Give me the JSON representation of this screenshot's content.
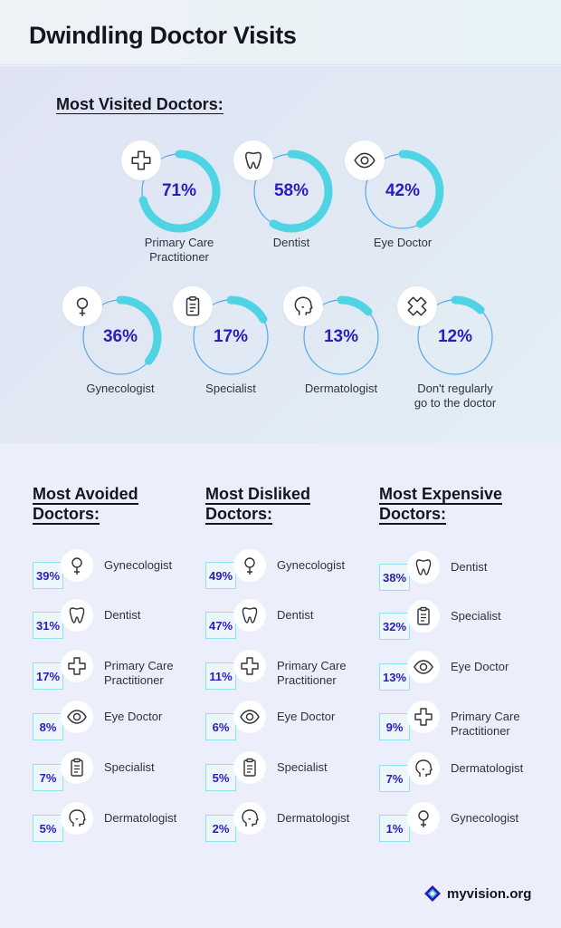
{
  "title": "Dwindling Doctor Visits",
  "visited": {
    "title": "Most Visited Doctors:",
    "items": [
      {
        "label": "Primary Care\nPractitioner",
        "value": 71,
        "pct": "71%",
        "icon": "cross-icon"
      },
      {
        "label": "Dentist",
        "value": 58,
        "pct": "58%",
        "icon": "tooth-icon"
      },
      {
        "label": "Eye Doctor",
        "value": 42,
        "pct": "42%",
        "icon": "eye-icon"
      },
      {
        "label": "Gynecologist",
        "value": 36,
        "pct": "36%",
        "icon": "female-icon"
      },
      {
        "label": "Specialist",
        "value": 17,
        "pct": "17%",
        "icon": "clipboard-icon"
      },
      {
        "label": "Dermatologist",
        "value": 13,
        "pct": "13%",
        "icon": "head-icon"
      },
      {
        "label": "Don't regularly\ngo to the doctor",
        "value": 12,
        "pct": "12%",
        "icon": "x-icon"
      }
    ]
  },
  "columns": [
    {
      "title": "Most Avoided\nDoctors:",
      "items": [
        {
          "label": "Gynecologist",
          "pct": "39%",
          "icon": "female-icon"
        },
        {
          "label": "Dentist",
          "pct": "31%",
          "icon": "tooth-icon"
        },
        {
          "label": "Primary Care\nPractitioner",
          "pct": "17%",
          "icon": "cross-icon"
        },
        {
          "label": "Eye Doctor",
          "pct": "8%",
          "icon": "eye-icon"
        },
        {
          "label": "Specialist",
          "pct": "7%",
          "icon": "clipboard-icon"
        },
        {
          "label": "Dermatologist",
          "pct": "5%",
          "icon": "head-icon"
        }
      ]
    },
    {
      "title": "Most Disliked\nDoctors:",
      "items": [
        {
          "label": "Gynecologist",
          "pct": "49%",
          "icon": "female-icon"
        },
        {
          "label": "Dentist",
          "pct": "47%",
          "icon": "tooth-icon"
        },
        {
          "label": "Primary Care\nPractitioner",
          "pct": "11%",
          "icon": "cross-icon"
        },
        {
          "label": "Eye Doctor",
          "pct": "6%",
          "icon": "eye-icon"
        },
        {
          "label": "Specialist",
          "pct": "5%",
          "icon": "clipboard-icon"
        },
        {
          "label": "Dermatologist",
          "pct": "2%",
          "icon": "head-icon"
        }
      ]
    },
    {
      "title": "Most Expensive\nDoctors:",
      "items": [
        {
          "label": "Dentist",
          "pct": "38%",
          "icon": "tooth-icon"
        },
        {
          "label": "Specialist",
          "pct": "32%",
          "icon": "clipboard-icon"
        },
        {
          "label": "Eye Doctor",
          "pct": "13%",
          "icon": "eye-icon"
        },
        {
          "label": "Primary Care\nPractitioner",
          "pct": "9%",
          "icon": "cross-icon"
        },
        {
          "label": "Dermatologist",
          "pct": "7%",
          "icon": "head-icon"
        },
        {
          "label": "Gynecologist",
          "pct": "1%",
          "icon": "female-icon"
        }
      ]
    }
  ],
  "logo": {
    "text": "myvision.org",
    "icon": "myvision-logo-icon"
  },
  "colors": {
    "accent": "#4fd4e4",
    "ring": "#5aa7e6",
    "pct_text": "#2a1cbf",
    "box_border": "#8ee4ee"
  },
  "chart_data": [
    {
      "type": "pie",
      "title": "Most Visited Doctors:",
      "categories": [
        "Primary Care Practitioner",
        "Dentist",
        "Eye Doctor",
        "Gynecologist",
        "Specialist",
        "Dermatologist",
        "Don't regularly go to the doctor"
      ],
      "values": [
        71,
        58,
        42,
        36,
        17,
        13,
        12
      ]
    },
    {
      "type": "table",
      "title": "Most Avoided Doctors:",
      "categories": [
        "Gynecologist",
        "Dentist",
        "Primary Care Practitioner",
        "Eye Doctor",
        "Specialist",
        "Dermatologist"
      ],
      "values": [
        39,
        31,
        17,
        8,
        7,
        5
      ]
    },
    {
      "type": "table",
      "title": "Most Disliked Doctors:",
      "categories": [
        "Gynecologist",
        "Dentist",
        "Primary Care Practitioner",
        "Eye Doctor",
        "Specialist",
        "Dermatologist"
      ],
      "values": [
        49,
        47,
        11,
        6,
        5,
        2
      ]
    },
    {
      "type": "table",
      "title": "Most Expensive Doctors:",
      "categories": [
        "Dentist",
        "Specialist",
        "Eye Doctor",
        "Primary Care Practitioner",
        "Dermatologist",
        "Gynecologist"
      ],
      "values": [
        38,
        32,
        13,
        9,
        7,
        1
      ]
    }
  ]
}
